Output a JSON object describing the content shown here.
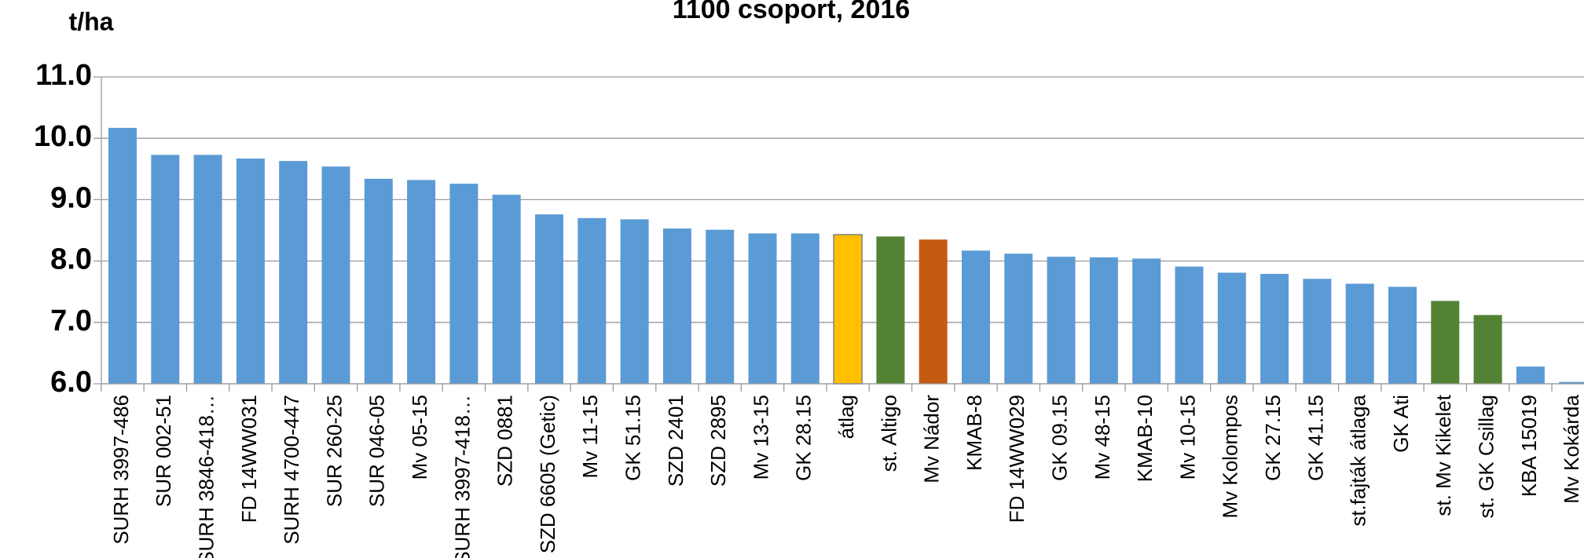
{
  "chart_data": {
    "type": "bar",
    "title": "1100 csoport, 2016",
    "y_label": "t/ha",
    "categories": [
      "SURH 3997-486",
      "SUR 002-51",
      "SURH 3846-418…",
      "FD 14WW031",
      "SURH 4700-447",
      "SUR 260-25",
      "SUR 046-05",
      "Mv 05-15",
      "SURH 3997-418…",
      "SZD 0881",
      "SZD 6605 (Getic)",
      "Mv 11-15",
      "GK 51.15",
      "SZD 2401",
      "SZD 2895",
      "Mv 13-15",
      "GK 28.15",
      "átlag",
      "st. Altigo",
      "Mv Nádor",
      "KMAB-8",
      "FD 14WW029",
      "GK 09.15",
      "Mv 48-15",
      "KMAB-10",
      "Mv 10-15",
      "Mv Kolompos",
      "GK 27.15",
      "GK 41.15",
      "st.fajták átlaga",
      "GK Ati",
      "st. Mv Kikelet",
      "st. GK Csillag",
      "KBA 15019",
      "Mv Kokárda"
    ],
    "values": [
      10.17,
      9.73,
      9.73,
      9.67,
      9.63,
      9.54,
      9.34,
      9.32,
      9.26,
      9.08,
      8.76,
      8.7,
      8.68,
      8.53,
      8.51,
      8.45,
      8.45,
      8.43,
      8.4,
      8.35,
      8.17,
      8.12,
      8.07,
      8.06,
      8.04,
      7.91,
      7.81,
      7.79,
      7.71,
      7.63,
      7.58,
      7.35,
      7.12,
      6.28,
      6.03
    ],
    "colors": [
      "#5b9bd5",
      "#5b9bd5",
      "#5b9bd5",
      "#5b9bd5",
      "#5b9bd5",
      "#5b9bd5",
      "#5b9bd5",
      "#5b9bd5",
      "#5b9bd5",
      "#5b9bd5",
      "#5b9bd5",
      "#5b9bd5",
      "#5b9bd5",
      "#5b9bd5",
      "#5b9bd5",
      "#5b9bd5",
      "#5b9bd5",
      "#ffc000",
      "#548235",
      "#c55a11",
      "#5b9bd5",
      "#5b9bd5",
      "#5b9bd5",
      "#5b9bd5",
      "#5b9bd5",
      "#5b9bd5",
      "#5b9bd5",
      "#5b9bd5",
      "#5b9bd5",
      "#5b9bd5",
      "#5b9bd5",
      "#548235",
      "#548235",
      "#5b9bd5",
      "#5b9bd5"
    ],
    "ylim": [
      6,
      11
    ],
    "yticks": [
      {
        "value": 6,
        "label": "6.0"
      },
      {
        "value": 7,
        "label": "7.0"
      },
      {
        "value": 8,
        "label": "8.0"
      },
      {
        "value": 9,
        "label": "9.0"
      },
      {
        "value": 10,
        "label": "10.0"
      },
      {
        "value": 11,
        "label": "11.0"
      }
    ],
    "grid": true
  }
}
